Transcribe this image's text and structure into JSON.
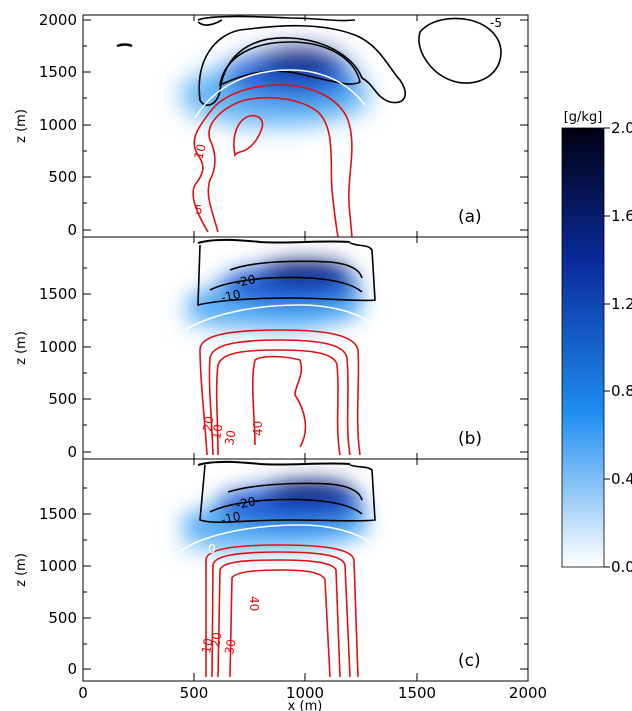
{
  "chart_data": {
    "type": "contour",
    "xlabel": "x (m)",
    "ylabel": "z (m)",
    "xlim": [
      0,
      2000
    ],
    "ylim": [
      -50,
      2050
    ],
    "x_ticks": [
      "0",
      "500",
      "1000",
      "1500",
      "2000"
    ],
    "y_ticks": [
      "0",
      "500",
      "1000",
      "1500",
      "2000"
    ],
    "colorbar": {
      "unit": "[g/kg]",
      "range": [
        0,
        2.0
      ],
      "ticks": [
        "0.00",
        "0.40",
        "0.80",
        "1.20",
        "1.60",
        "2.00"
      ],
      "colors": [
        "#ffffff",
        "#1e8ef0",
        "#0a2a9a",
        "#000010"
      ]
    },
    "colors": {
      "warm": "#e01010",
      "cold": "#000000",
      "zero": "#ffffff"
    },
    "panels": [
      {
        "label": "(a)",
        "y_ticks": [
          "0",
          "500",
          "1000",
          "1500",
          "2000"
        ],
        "contour_labels": [
          {
            "text": "10",
            "x": 530,
            "z": 700,
            "color": "warm"
          },
          {
            "text": "5",
            "x": 550,
            "z": 230,
            "color": "warm"
          },
          {
            "text": "-5",
            "x": 1900,
            "z": 1980,
            "color": "cold"
          }
        ],
        "shading": {
          "x_center": 960,
          "z_center": 1500,
          "max": 1.6
        },
        "warm_contour_levels": [
          5,
          10,
          15
        ],
        "cold_contour_levels": [
          -5,
          -10
        ]
      },
      {
        "label": "(b)",
        "y_ticks": [
          "0",
          "500",
          "1000",
          "1500"
        ],
        "contour_labels": [
          {
            "text": "-20",
            "x": 880,
            "z": 1620,
            "color": "cold"
          },
          {
            "text": "-10",
            "x": 830,
            "z": 1470,
            "color": "cold"
          },
          {
            "text": "20",
            "x": 600,
            "z": 150,
            "color": "warm"
          },
          {
            "text": "10",
            "x": 620,
            "z": 130,
            "color": "warm"
          },
          {
            "text": "30",
            "x": 680,
            "z": 130,
            "color": "warm"
          },
          {
            "text": "40",
            "x": 830,
            "z": 230,
            "color": "warm"
          }
        ],
        "shading": {
          "x_center": 1000,
          "z_center": 1500,
          "max": 1.9
        },
        "warm_contour_levels": [
          10,
          20,
          30,
          40
        ],
        "cold_contour_levels": [
          -10,
          -20
        ]
      },
      {
        "label": "(c)",
        "y_ticks": [
          "0",
          "500",
          "1000",
          "1500"
        ],
        "contour_labels": [
          {
            "text": "-20",
            "x": 880,
            "z": 1620,
            "color": "cold"
          },
          {
            "text": "-10",
            "x": 830,
            "z": 1460,
            "color": "cold"
          },
          {
            "text": "0",
            "x": 590,
            "z": 1150,
            "color": "zero"
          },
          {
            "text": "40",
            "x": 760,
            "z": 780,
            "color": "warm"
          },
          {
            "text": "20",
            "x": 620,
            "z": 180,
            "color": "warm"
          },
          {
            "text": "10",
            "x": 610,
            "z": 140,
            "color": "warm"
          },
          {
            "text": "30",
            "x": 680,
            "z": 140,
            "color": "warm"
          }
        ],
        "shading": {
          "x_center": 1000,
          "z_center": 1530,
          "max": 2.0
        },
        "warm_contour_levels": [
          10,
          20,
          30,
          40
        ],
        "cold_contour_levels": [
          -10,
          -20
        ]
      }
    ]
  }
}
